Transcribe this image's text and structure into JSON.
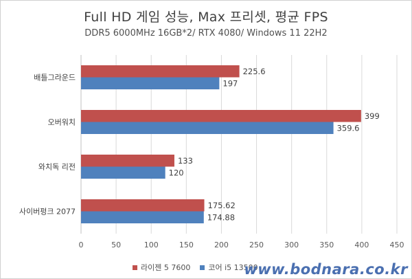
{
  "chart_data": {
    "type": "bar",
    "orientation": "horizontal",
    "title": "Full HD 게임 성능, Max 프리셋, 평균 FPS",
    "subtitle": "DDR5 6000MHz 16GB*2/ RTX 4080/ Windows 11 22H2",
    "categories": [
      "배틀그라운드",
      "오버워치",
      "와치독 리전",
      "사이버펑크 2077"
    ],
    "series": [
      {
        "name": "라이젠 5 7600",
        "color": "#c0504d",
        "values": [
          225.6,
          399,
          133,
          175.62
        ],
        "labels": [
          "225.6",
          "399",
          "133",
          "175.62"
        ]
      },
      {
        "name": "코어 i5 13500",
        "color": "#4f81bd",
        "values": [
          197,
          359.6,
          120,
          174.88
        ],
        "labels": [
          "197",
          "359.6",
          "120",
          "174.88"
        ]
      }
    ],
    "xlim": [
      0,
      450
    ],
    "xticks": [
      "0",
      "50",
      "100",
      "150",
      "200",
      "250",
      "300",
      "350",
      "400",
      "450"
    ],
    "grid": "vertical",
    "legend": "bottom"
  },
  "watermark": "www.bodnara.co.kr"
}
